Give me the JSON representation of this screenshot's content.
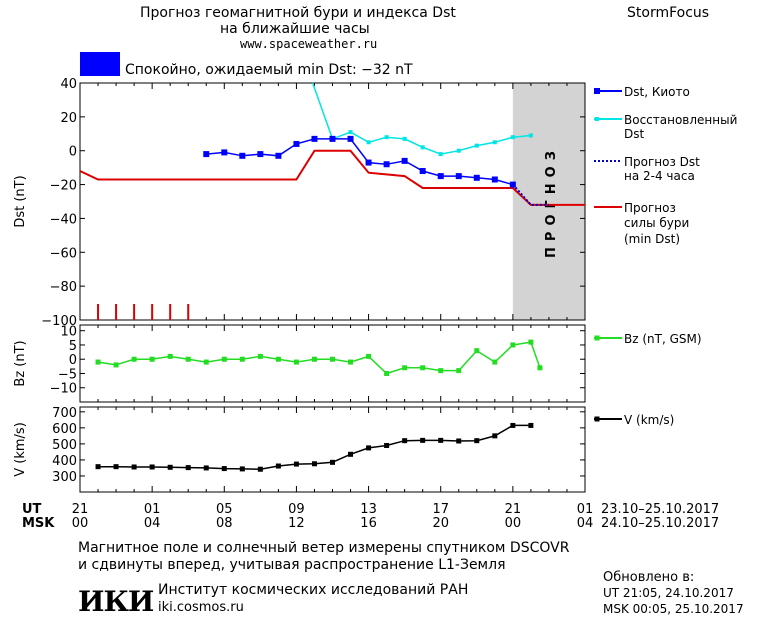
{
  "header": {
    "title_line1": "Прогноз геомагнитной бури и индекса Dst",
    "title_line2": "на ближайшие часы",
    "url": "www.spaceweather.ru",
    "brand": "StormFocus",
    "status_text": "Спокойно, ожидаемый min Dst: −32 nT",
    "status_color": "#0000ff"
  },
  "forecast_band_label": "ПРОГНОЗ",
  "legend": {
    "dst_kyoto": "Dst, Киото",
    "restored_line1": "Восстановленный",
    "restored_line2": "Dst",
    "forecast_line1": "Прогноз Dst",
    "forecast_line2": "на 2-4 часа",
    "storm_line1": "Прогноз",
    "storm_line2": "силы бури",
    "storm_line3": "(min Dst)",
    "bz": "Bz (nT, GSM)",
    "v": "V (km/s)"
  },
  "axes": {
    "dst_ylabel": "Dst (nT)",
    "bz_ylabel": "Bz (nT)",
    "v_ylabel": "V (km/s)",
    "ut_label": "UT",
    "msk_label": "MSK",
    "ut_range": "23.10–25.10.2017",
    "msk_range": "24.10–25.10.2017"
  },
  "footer": {
    "note_line1": "Магнитное поле и солнечный ветер измерены спутником DSCOVR",
    "note_line2": "и сдвинуты вперед, учитывая распространение L1-Земля",
    "institute": "Институт космических исследований РАН",
    "institute_url": "iki.cosmos.ru",
    "logo_text": "ИКИ",
    "updated_label": "Обновлено в:",
    "updated_ut": "UT  21:05, 24.10.2017",
    "updated_msk": "MSK 00:05, 25.10.2017"
  },
  "chart_data": [
    {
      "type": "line",
      "title": "Dst",
      "ylabel": "Dst (nT)",
      "ylim": [
        -100,
        40
      ],
      "yticks": [
        40,
        20,
        0,
        -20,
        -40,
        -60,
        -80,
        -100
      ],
      "xlim_hours": [
        0,
        28
      ],
      "x_ut_ticks": [
        "21",
        "01",
        "05",
        "09",
        "13",
        "17",
        "21",
        "01"
      ],
      "x_msk_ticks": [
        "00",
        "04",
        "08",
        "12",
        "16",
        "20",
        "00",
        "04"
      ],
      "forecast_region_hours": [
        24,
        28
      ],
      "series": [
        {
          "name": "Dst, Киото",
          "color": "#0000ff",
          "x": [
            7,
            8,
            9,
            10,
            11,
            12,
            13,
            14,
            15,
            16,
            17,
            18,
            19,
            20,
            21,
            22,
            23,
            24
          ],
          "y": [
            -2,
            -1,
            -3,
            -2,
            -3,
            4,
            7,
            7,
            7,
            -7,
            -8,
            -6,
            -12,
            -15,
            -15,
            -16,
            -17,
            -20
          ]
        },
        {
          "name": "Восстановленный Dst",
          "color": "#00e5e5",
          "x": [
            14,
            15,
            16,
            17,
            18,
            19,
            20,
            21,
            22,
            23,
            24,
            25
          ],
          "y": [
            7,
            11,
            5,
            8,
            7,
            2,
            -2,
            0,
            3,
            5,
            8,
            9
          ]
        },
        {
          "name": "Прогноз Dst на 2-4 часа",
          "color": "#0000cc",
          "x": [
            24,
            25,
            26
          ],
          "y": [
            -20,
            -32,
            -32
          ]
        },
        {
          "name": "Прогноз силы бури (min Dst)",
          "color": "#dd0000",
          "x": [
            0,
            1,
            12,
            13,
            15,
            16,
            18,
            19,
            24,
            25,
            28
          ],
          "y": [
            -12,
            -17,
            -17,
            0,
            0,
            -13,
            -15,
            -22,
            -22,
            -32,
            -32
          ]
        }
      ],
      "red_ticks_hours": [
        1,
        2,
        3,
        4,
        5,
        6
      ]
    },
    {
      "type": "line",
      "ylabel": "Bz (nT)",
      "ylim": [
        -15,
        12
      ],
      "yticks": [
        10,
        5,
        0,
        -5,
        -10
      ],
      "series": [
        {
          "name": "Bz (nT, GSM)",
          "color": "#22dd22",
          "x": [
            1,
            2,
            3,
            4,
            5,
            6,
            7,
            8,
            9,
            10,
            11,
            12,
            13,
            14,
            15,
            16,
            17,
            18,
            19,
            20,
            21,
            22,
            23,
            24,
            25
          ],
          "y": [
            -1,
            -2,
            0,
            0,
            1,
            0,
            -1,
            0,
            0,
            1,
            0,
            -1,
            0,
            0,
            -1,
            1,
            -5,
            -3,
            -3,
            -4,
            -4,
            3,
            -1,
            5,
            6
          ]
        }
      ],
      "extra_point": {
        "x": 25.5,
        "y": -3
      }
    },
    {
      "type": "line",
      "ylabel": "V (km/s)",
      "ylim": [
        200,
        730
      ],
      "yticks": [
        700,
        600,
        500,
        400,
        300
      ],
      "series": [
        {
          "name": "V (km/s)",
          "color": "#000000",
          "x": [
            1,
            2,
            3,
            4,
            5,
            6,
            7,
            8,
            9,
            10,
            11,
            12,
            13,
            14,
            15,
            16,
            17,
            18,
            19,
            20,
            21,
            22,
            23,
            24,
            25
          ],
          "y": [
            358,
            358,
            356,
            356,
            354,
            352,
            350,
            346,
            344,
            342,
            362,
            374,
            376,
            385,
            435,
            475,
            490,
            520,
            522,
            522,
            518,
            520,
            550,
            615,
            615
          ]
        }
      ]
    }
  ]
}
